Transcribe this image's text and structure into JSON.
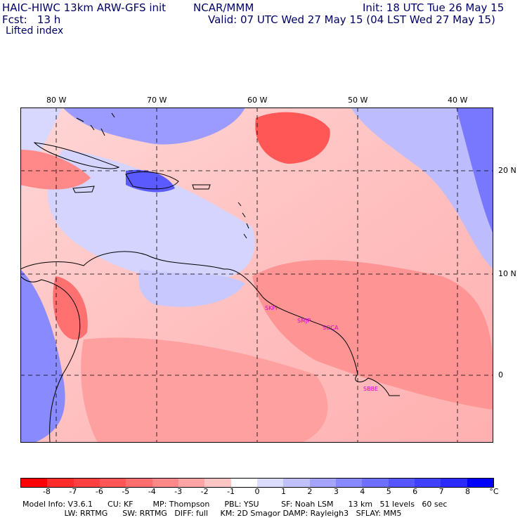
{
  "header": {
    "model_line": "HAIC-HIWC 13km ARW-GFS init",
    "org": "NCAR/MMM",
    "init": "Init: 18 UTC Tue 26 May 15",
    "fcst": "Fcst:   13 h",
    "valid": "Valid: 07 UTC Wed 27 May 15 (04 LST Wed 27 May 15)",
    "field": "Lifted index"
  },
  "map": {
    "lon_labels": [
      "80 W",
      "70 W",
      "60 W",
      "50 W",
      "40 W"
    ],
    "lat_labels": [
      "20 N",
      "10 N",
      "0"
    ],
    "stations": [
      "SKPI",
      "SMJP",
      "SOCA",
      "SBBE"
    ],
    "station_color": "#dd00dd"
  },
  "colorbar": {
    "labels": [
      "-8",
      "-7",
      "-6",
      "-5",
      "-4",
      "-3",
      "-2",
      "-1",
      "0",
      "1",
      "2",
      "3",
      "4",
      "5",
      "6",
      "7",
      "8",
      "°C"
    ],
    "colors": [
      "#ff0000",
      "#ff2a2a",
      "#ff4040",
      "#ff5656",
      "#ff6e6e",
      "#ff8888",
      "#ffa4a4",
      "#ffc4c4",
      "#ffffff",
      "#dcdcff",
      "#c0c0ff",
      "#a4a4ff",
      "#8888ff",
      "#6e6eff",
      "#5656ff",
      "#4040ff",
      "#2a2aff",
      "#0000ff"
    ]
  },
  "footer": {
    "line1": "Model Info: V3.6.1      CU: KF        MP: Thompson      PBL: YSU         SF: Noah LSM      13 km   51 levels   60 sec",
    "line2": "                 LW: RRTMG      SW: RRTMG   DIFF: full     KM: 2D Smagor DAMP: Rayleigh3   SFLAY: MM5"
  }
}
